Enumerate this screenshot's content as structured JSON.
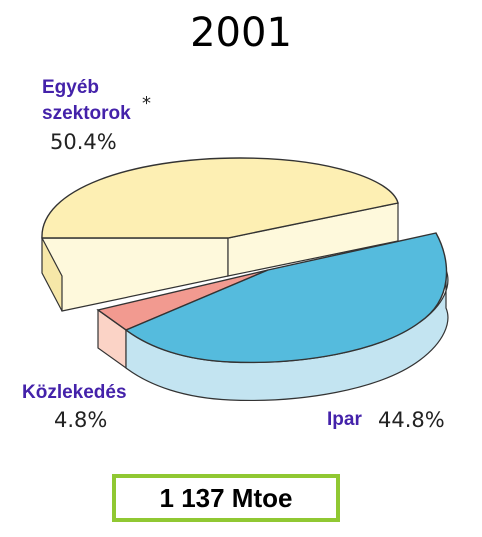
{
  "chart_data": {
    "type": "pie",
    "title": "2001",
    "slices": [
      {
        "label_lines": [
          "Egyéb",
          "szektorok"
        ],
        "note": "*",
        "value": 50.4,
        "value_text": "50.4%",
        "color": "#fdefb3"
      },
      {
        "label_lines": [
          "Ipar"
        ],
        "value": 44.8,
        "value_text": "44.8%",
        "color": "#55bbdd"
      },
      {
        "label_lines": [
          "Közlekedés"
        ],
        "value": 4.8,
        "value_text": "4.8%",
        "color": "#f29a90"
      }
    ]
  },
  "total": "1 137 Mtoe"
}
